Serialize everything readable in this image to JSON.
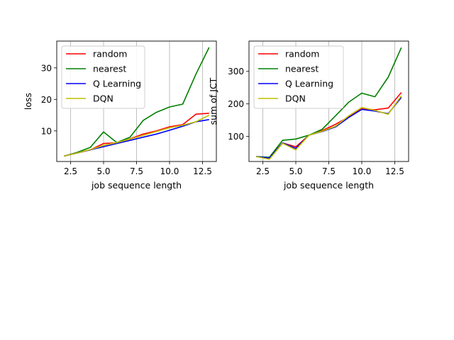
{
  "chart_data": [
    {
      "type": "line",
      "xlabel": "job sequence length",
      "ylabel": "loss",
      "xlim": [
        1.45,
        13.55
      ],
      "ylim": [
        0.3,
        38.5
      ],
      "xticks": [
        2.5,
        5.0,
        7.5,
        10.0,
        12.5
      ],
      "xtick_labels": [
        "2.5",
        "5.0",
        "7.5",
        "10.0",
        "12.5"
      ],
      "yticks": [
        10,
        20,
        30
      ],
      "ytick_labels": [
        "10",
        "20",
        "30"
      ],
      "grid": "vertical",
      "legend_position": "upper-left",
      "x": [
        2,
        3,
        4,
        5,
        6,
        7,
        8,
        9,
        10,
        11,
        12,
        13
      ],
      "series": [
        {
          "name": "random",
          "color": "#ff0000",
          "values": [
            2.0,
            3.0,
            4.0,
            6.0,
            6.2,
            7.5,
            9.0,
            10.0,
            11.3,
            12.0,
            15.3,
            15.6
          ]
        },
        {
          "name": "nearest",
          "color": "#008000",
          "values": [
            2.0,
            3.2,
            4.8,
            9.7,
            6.3,
            8.0,
            13.3,
            15.9,
            17.6,
            18.5,
            28.0,
            36.5
          ]
        },
        {
          "name": "Q Learning",
          "color": "#0000ff",
          "values": [
            2.0,
            3.0,
            4.0,
            5.0,
            6.0,
            7.0,
            8.0,
            9.0,
            10.2,
            11.5,
            12.9,
            13.6
          ]
        },
        {
          "name": "DQN",
          "color": "#bfbf00",
          "values": [
            2.0,
            3.0,
            4.1,
            5.4,
            6.3,
            7.4,
            8.6,
            9.8,
            11.0,
            11.8,
            12.9,
            15.0
          ]
        }
      ]
    },
    {
      "type": "line",
      "xlabel": "job sequence length",
      "ylabel": "sum of JCT",
      "xlim": [
        1.45,
        13.55
      ],
      "ylim": [
        23,
        393
      ],
      "xticks": [
        2.5,
        5.0,
        7.5,
        10.0,
        12.5
      ],
      "xtick_labels": [
        "2.5",
        "5.0",
        "7.5",
        "10.0",
        "12.5"
      ],
      "yticks": [
        100,
        200,
        300
      ],
      "ytick_labels": [
        "100",
        "200",
        "300"
      ],
      "grid": "vertical",
      "legend_position": "upper-left",
      "x": [
        2,
        3,
        4,
        5,
        6,
        7,
        8,
        9,
        10,
        11,
        12,
        13
      ],
      "series": [
        {
          "name": "random",
          "color": "#ff0000",
          "values": [
            38,
            34,
            80,
            68,
            104,
            118,
            137,
            160,
            185,
            182,
            187,
            235
          ]
        },
        {
          "name": "nearest",
          "color": "#008000",
          "values": [
            38,
            36,
            88,
            92,
            104,
            122,
            163,
            205,
            233,
            222,
            282,
            373
          ]
        },
        {
          "name": "Q Learning",
          "color": "#0000ff",
          "values": [
            38,
            34,
            80,
            63,
            104,
            115,
            129,
            158,
            183,
            178,
            170,
            220
          ]
        },
        {
          "name": "DQN",
          "color": "#bfbf00",
          "values": [
            38,
            30,
            79,
            59,
            104,
            116,
            131,
            163,
            189,
            180,
            168,
            225
          ]
        }
      ]
    }
  ]
}
